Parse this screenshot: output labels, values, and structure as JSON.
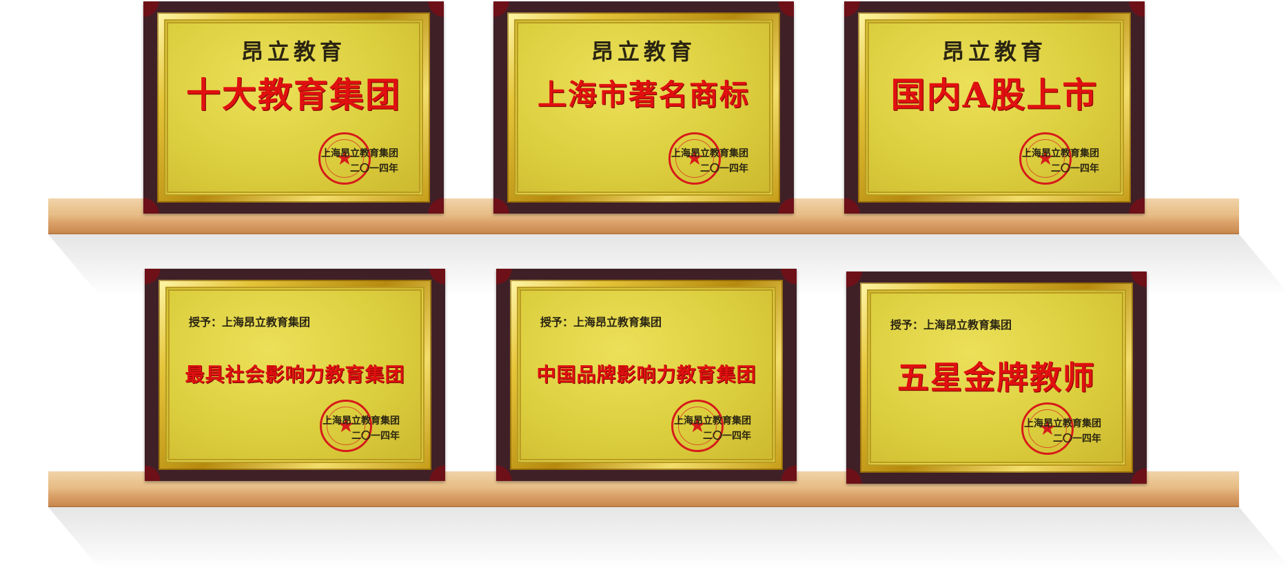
{
  "plaques": [
    {
      "org": "昂立教育",
      "honor": "十大教育集团",
      "issuer": "上海昂立教育集团",
      "date": "二〇一四年"
    },
    {
      "org": "昂立教育",
      "honor": "上海市著名商标",
      "issuer": "上海昂立教育集团",
      "date": "二〇一四年"
    },
    {
      "org": "昂立教育",
      "honor": "国内A股上市",
      "issuer": "上海昂立教育集团",
      "date": "二〇一四年"
    },
    {
      "grant": "授予：上海昂立教育集团",
      "honor": "最具社会影响力教育集团",
      "issuer": "上海昂立教育集团",
      "date": "二〇一四年"
    },
    {
      "grant": "授予：上海昂立教育集团",
      "honor": "中国品牌影响力教育集团",
      "issuer": "上海昂立教育集团",
      "date": "二〇一四年"
    },
    {
      "grant": "授予：上海昂立教育集团",
      "honor": "五星金牌教师",
      "issuer": "上海昂立教育集团",
      "date": "二〇一四年"
    }
  ],
  "seal": {
    "icon": "red-star-seal",
    "color": "#d71a1a"
  }
}
